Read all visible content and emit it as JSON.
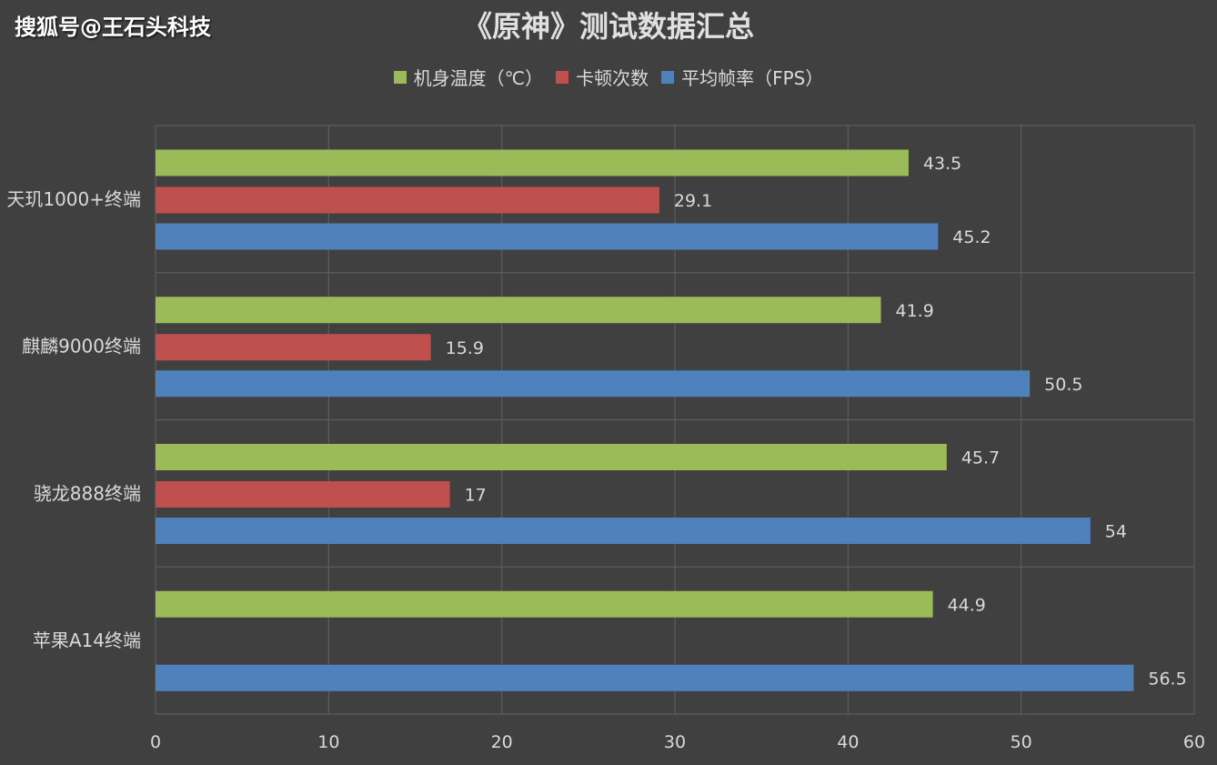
{
  "watermark": "搜狐号@王石头科技",
  "chart_data": {
    "type": "bar",
    "orientation": "horizontal",
    "title": "《原神》测试数据汇总",
    "categories": [
      "天玑1000+终端",
      "麒麟9000终端",
      "骁龙888终端",
      "苹果A14终端"
    ],
    "series": [
      {
        "name": "机身温度（℃）",
        "color": "#9bbb59",
        "values": [
          43.5,
          41.9,
          45.7,
          44.9
        ]
      },
      {
        "name": "卡顿次数",
        "color": "#c0504d",
        "values": [
          29.1,
          15.9,
          17,
          null
        ]
      },
      {
        "name": "平均帧率（FPS）",
        "color": "#4f81bd",
        "values": [
          45.2,
          50.5,
          54,
          56.5
        ]
      }
    ],
    "xlim": [
      0,
      60
    ],
    "xticks": [
      0,
      10,
      20,
      30,
      40,
      50,
      60
    ],
    "grid": true,
    "legend": "top-center",
    "data_labels": true
  }
}
